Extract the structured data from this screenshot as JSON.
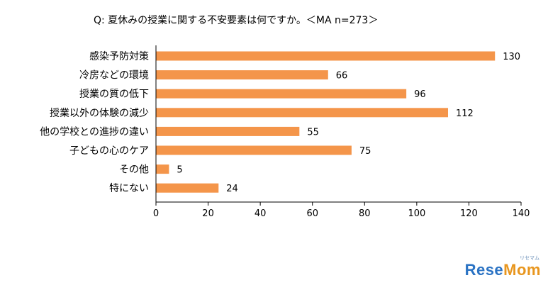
{
  "chart_data": {
    "type": "bar",
    "orientation": "horizontal",
    "title": "Q:  夏休みの授業に関する不安要素は何ですか。＜MA n=273＞",
    "categories": [
      "感染予防対策",
      "冷房などの環境",
      "授業の質の低下",
      "授業以外の体験の減少",
      "他の学校との進捗の違い",
      "子どもの心のケア",
      "その他",
      "特にない"
    ],
    "values": [
      130,
      66,
      96,
      112,
      55,
      75,
      5,
      24
    ],
    "xlim": [
      0,
      140
    ],
    "x_ticks": [
      0,
      20,
      40,
      60,
      80,
      100,
      120,
      140
    ],
    "grid": false,
    "legend": "none",
    "bar_color": "#f4954a",
    "data_labels": true
  },
  "logo": {
    "part1": "Rese",
    "part2": "Mom",
    "kana": "リセマム"
  }
}
